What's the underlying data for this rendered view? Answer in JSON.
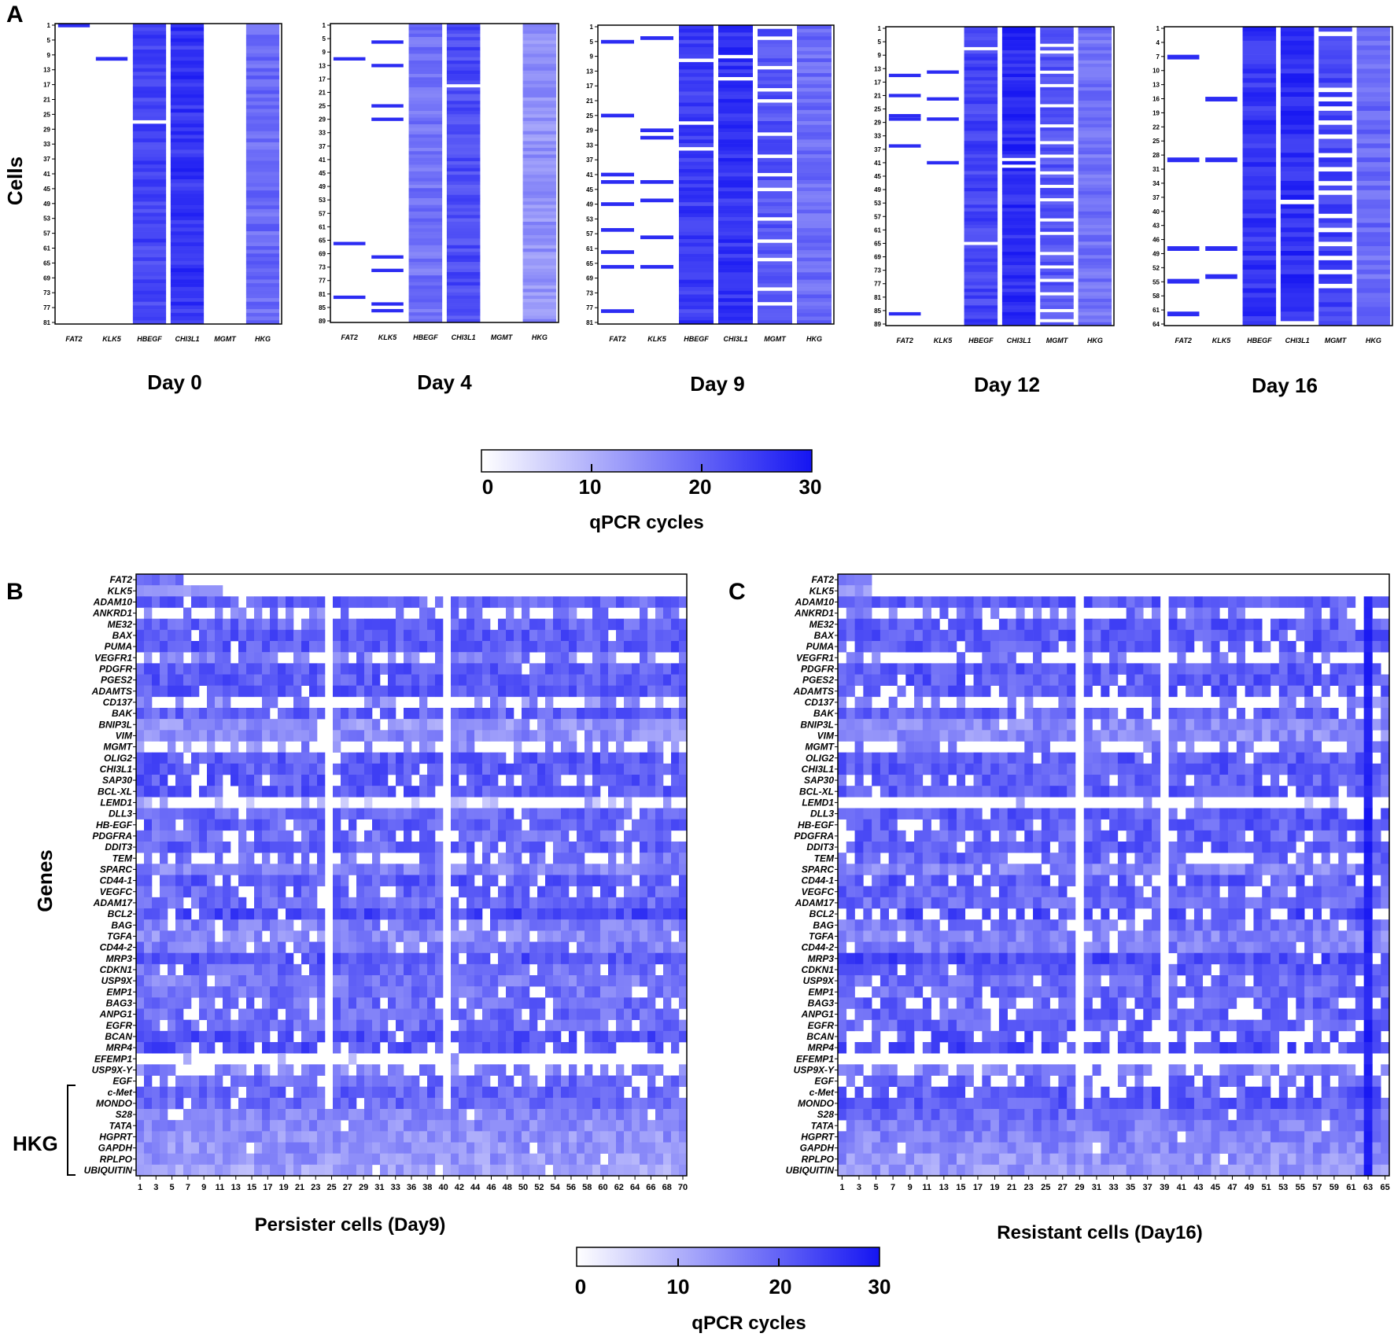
{
  "figure": {
    "panel_letters": [
      "A",
      "B",
      "C"
    ],
    "hkg_bracket_label": "HKG"
  },
  "colors": {
    "scale_low": "#ffffff",
    "scale_high": "#1515f2",
    "text": "#000000"
  },
  "chart_data": [
    {
      "id": "A",
      "type": "heatmap",
      "y_title": "Cells",
      "genes": [
        "FAT2",
        "KLK5",
        "HBEGF",
        "CHI3L1",
        "MGMT",
        "HKG"
      ],
      "value_range": [
        0,
        30
      ],
      "value_unit": "qPCR cycles",
      "days": [
        {
          "label": "Day 0",
          "rows": 81,
          "row_ticks": [
            "1",
            "5",
            "9",
            "13",
            "17",
            "21",
            "25",
            "29",
            "33",
            "37",
            "41",
            "45",
            "49",
            "53",
            "57",
            "61",
            "65",
            "69",
            "73",
            "77",
            "81"
          ],
          "gene_base": [
            0,
            0,
            24,
            26,
            0,
            19
          ],
          "white_rows": [
            [
              0
            ],
            [
              9
            ],
            [
              26
            ],
            [],
            [],
            []
          ]
        },
        {
          "label": "Day 4",
          "rows": 89,
          "row_ticks": [
            "1",
            "5",
            "9",
            "13",
            "17",
            "21",
            "25",
            "29",
            "33",
            "37",
            "41",
            "45",
            "49",
            "53",
            "57",
            "61",
            "65",
            "69",
            "73",
            "77",
            "81",
            "85",
            "89"
          ],
          "gene_base": [
            0,
            0,
            18,
            23,
            0,
            14
          ],
          "white_rows": [
            [
              10,
              65,
              81
            ],
            [
              5,
              12,
              24,
              28,
              69,
              73,
              83,
              85
            ],
            [],
            [
              18
            ],
            [],
            []
          ]
        },
        {
          "label": "Day 9",
          "rows": 81,
          "row_ticks": [
            "1",
            "5",
            "9",
            "13",
            "17",
            "21",
            "25",
            "29",
            "33",
            "37",
            "41",
            "45",
            "49",
            "53",
            "57",
            "61",
            "65",
            "69",
            "73",
            "77",
            "81"
          ],
          "gene_base": [
            0,
            0,
            25,
            26,
            22,
            19
          ],
          "white_rows": [
            [
              4,
              24,
              40,
              42,
              48,
              55,
              61,
              65,
              77
            ],
            [
              3,
              28,
              30,
              42,
              47,
              57,
              65
            ],
            [
              9,
              26,
              33
            ],
            [
              8,
              14
            ],
            [
              0,
              3,
              11,
              17,
              20,
              29,
              35,
              40,
              44,
              52,
              58,
              63,
              71,
              75
            ],
            []
          ]
        },
        {
          "label": "Day 12",
          "rows": 89,
          "row_ticks": [
            "1",
            "5",
            "9",
            "13",
            "17",
            "21",
            "25",
            "29",
            "33",
            "37",
            "41",
            "45",
            "49",
            "53",
            "57",
            "61",
            "65",
            "69",
            "73",
            "77",
            "81",
            "85",
            "89"
          ],
          "gene_base": [
            0,
            0,
            24,
            27,
            22,
            18
          ],
          "white_rows": [
            [
              14,
              20,
              26,
              27,
              35,
              85
            ],
            [
              13,
              21,
              27,
              40
            ],
            [
              6,
              64
            ],
            [
              39,
              41
            ],
            [
              5,
              7,
              13,
              17,
              23,
              29,
              34,
              38,
              43,
              47,
              51,
              57,
              61,
              67,
              71,
              75,
              79,
              84,
              87
            ],
            []
          ]
        },
        {
          "label": "Day 16",
          "rows": 64,
          "row_ticks": [
            "1",
            "4",
            "7",
            "10",
            "13",
            "16",
            "19",
            "22",
            "25",
            "28",
            "31",
            "34",
            "37",
            "40",
            "43",
            "46",
            "49",
            "52",
            "55",
            "58",
            "61",
            "64"
          ],
          "gene_base": [
            0,
            0,
            26,
            27,
            24,
            19
          ],
          "white_rows": [
            [
              6,
              28,
              47,
              54,
              61
            ],
            [
              15,
              28,
              47,
              53
            ],
            [],
            [
              37,
              63
            ],
            [
              1,
              13,
              15,
              17,
              20,
              23,
              27,
              30,
              33,
              35,
              40,
              43,
              46,
              49,
              52,
              55
            ],
            []
          ]
        }
      ],
      "colorbar": {
        "ticks": [
          "0",
          "10",
          "20",
          "30"
        ],
        "title": "qPCR cycles"
      }
    },
    {
      "id": "B",
      "type": "heatmap",
      "title": "Persister cells (Day9)",
      "y_title": "Genes",
      "cells": 70,
      "col_ticks": [
        "1",
        "3",
        "5",
        "7",
        "9",
        "11",
        "13",
        "15",
        "17",
        "19",
        "21",
        "23",
        "25",
        "27",
        "29",
        "31",
        "33",
        "36",
        "38",
        "40",
        "42",
        "44",
        "46",
        "48",
        "50",
        "52",
        "54",
        "56",
        "58",
        "60",
        "62",
        "64",
        "66",
        "68",
        "70"
      ],
      "genes": [
        "FAT2",
        "KLK5",
        "ADAM10",
        "ANKRD1",
        "ME32",
        "BAX",
        "PUMA",
        "VEGFR1",
        "PDGFR",
        "PGES2",
        "ADAMTS",
        "CD137",
        "BAK",
        "BNIP3L",
        "VIM",
        "MGMT",
        "OLIG2",
        "CHI3L1",
        "SAP30",
        "BCL-XL",
        "LEMD1",
        "DLL3",
        "HB-EGF",
        "PDGFRA",
        "DDIT3",
        "TEM",
        "SPARC",
        "CD44-1",
        "VEGFC",
        "ADAM17",
        "BCL2",
        "BAG",
        "TGFA",
        "CD44-2",
        "MRP3",
        "CDKN1",
        "USP9X",
        "EMP1",
        "BAG3",
        "ANPG1",
        "EGFR",
        "BCAN",
        "MRP4",
        "EFEMP1",
        "USP9X-Y",
        "EGF",
        "c-Met",
        "MONDO",
        "S28",
        "TATA",
        "HGPRT",
        "GAPDH",
        "RPLPO",
        "UBIQUITIN"
      ],
      "gene_base": [
        3,
        2,
        20,
        17,
        20,
        21,
        21,
        17,
        21,
        21,
        21,
        15,
        20,
        14,
        15,
        15,
        21,
        21,
        21,
        21,
        10,
        20,
        20,
        19,
        20,
        18,
        16,
        21,
        20,
        19,
        23,
        17,
        15,
        17,
        22,
        19,
        17,
        18,
        19,
        19,
        19,
        22,
        22,
        12,
        16,
        19,
        20,
        19,
        16,
        15,
        14,
        14,
        13,
        12
      ],
      "gene_sparsity": [
        0.1,
        0.1,
        0.06,
        0.55,
        0.04,
        0.03,
        0.03,
        0.5,
        0.04,
        0.03,
        0.04,
        0.6,
        0.03,
        0.06,
        0.04,
        0.55,
        0.08,
        0.08,
        0.2,
        0.08,
        0.8,
        0.1,
        0.1,
        0.2,
        0.1,
        0.35,
        0.02,
        0.12,
        0.15,
        0.04,
        0.06,
        0.06,
        0.05,
        0.06,
        0.04,
        0.05,
        0.08,
        0.08,
        0.1,
        0.12,
        0.12,
        0.18,
        0.15,
        0.9,
        0.35,
        0.15,
        0.1,
        0.03,
        0.02,
        0.02,
        0.02,
        0.02,
        0.02,
        0.02
      ],
      "white_columns": [
        25,
        40
      ],
      "fat2_filled_cells": 6,
      "klk5_filled_cells": 11,
      "hkg_genes": [
        "S28",
        "TATA",
        "HGPRT",
        "GAPDH",
        "RPLPO",
        "UBIQUITIN"
      ]
    },
    {
      "id": "C",
      "type": "heatmap",
      "title": "Resistant cells (Day16)",
      "cells": 65,
      "col_ticks": [
        "1",
        "3",
        "5",
        "7",
        "9",
        "11",
        "13",
        "15",
        "17",
        "19",
        "21",
        "23",
        "25",
        "27",
        "29",
        "31",
        "33",
        "35",
        "37",
        "39",
        "41",
        "43",
        "45",
        "47",
        "49",
        "51",
        "53",
        "55",
        "57",
        "59",
        "61",
        "63",
        "65"
      ],
      "genes": [
        "FAT2",
        "KLK5",
        "ADAM10",
        "ANKRD1",
        "ME32",
        "BAX",
        "PUMA",
        "VEGFR1",
        "PDGFR",
        "PGES2",
        "ADAMTS",
        "CD137",
        "BAK",
        "BNIP3L",
        "VIM",
        "MGMT",
        "OLIG2",
        "CHI3L1",
        "SAP30",
        "BCL-XL",
        "LEMD1",
        "DLL3",
        "HB-EGF",
        "PDGFRA",
        "DDIT3",
        "TEM",
        "SPARC",
        "CD44-1",
        "VEGFC",
        "ADAM17",
        "BCL2",
        "BAG",
        "TGFA",
        "CD44-2",
        "MRP3",
        "CDKN1",
        "USP9X",
        "EMP1",
        "BAG3",
        "ANPG1",
        "EGFR",
        "BCAN",
        "MRP4",
        "EFEMP1",
        "USP9X-Y",
        "EGF",
        "c-Met",
        "MONDO",
        "S28",
        "TATA",
        "HGPRT",
        "GAPDH",
        "RPLPO",
        "UBIQUITIN"
      ],
      "gene_base": [
        3,
        2,
        21,
        18,
        21,
        21,
        21,
        17,
        21,
        21,
        21,
        16,
        20,
        15,
        15,
        17,
        21,
        21,
        20,
        21,
        12,
        21,
        21,
        20,
        21,
        20,
        16,
        21,
        20,
        19,
        23,
        18,
        16,
        17,
        23,
        21,
        19,
        19,
        20,
        20,
        20,
        22,
        23,
        8,
        16,
        20,
        21,
        21,
        19,
        17,
        16,
        15,
        14,
        13
      ],
      "gene_sparsity": [
        0.05,
        0.05,
        0.05,
        0.6,
        0.03,
        0.03,
        0.05,
        0.6,
        0.03,
        0.03,
        0.25,
        0.65,
        0.03,
        0.05,
        0.04,
        0.45,
        0.06,
        0.06,
        0.2,
        0.1,
        0.85,
        0.1,
        0.12,
        0.3,
        0.1,
        0.35,
        0.02,
        0.2,
        0.15,
        0.03,
        0.35,
        0.06,
        0.05,
        0.05,
        0.05,
        0.06,
        0.1,
        0.1,
        0.15,
        0.12,
        0.1,
        0.45,
        0.2,
        0.95,
        0.3,
        0.4,
        0.2,
        0.03,
        0.02,
        0.02,
        0.02,
        0.02,
        0.02,
        0.02
      ],
      "white_columns": [
        29,
        39
      ],
      "dark_columns": [
        63
      ],
      "fat2_filled_cells": 4,
      "klk5_filled_cells": 4,
      "hkg_genes": [
        "S28",
        "TATA",
        "HGPRT",
        "GAPDH",
        "RPLPO",
        "UBIQUITIN"
      ]
    }
  ],
  "colorbar_bottom": {
    "ticks": [
      "0",
      "10",
      "20",
      "30"
    ],
    "title": "qPCR cycles"
  }
}
